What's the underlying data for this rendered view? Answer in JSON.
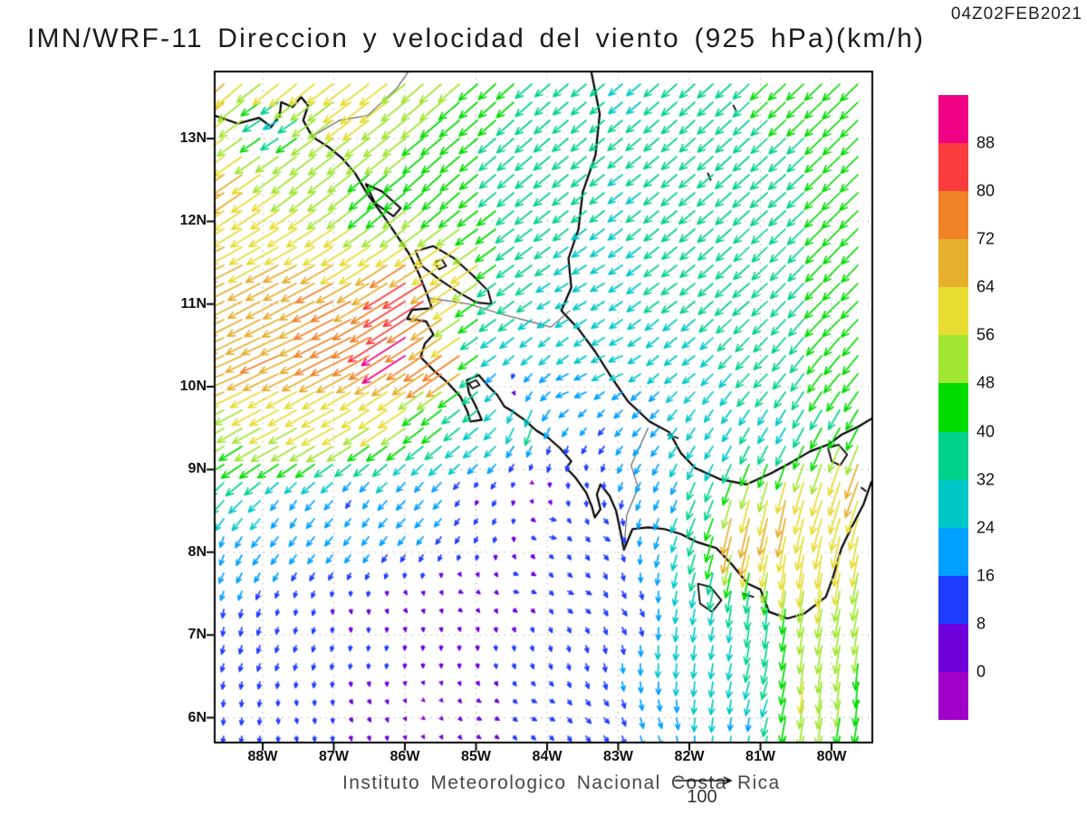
{
  "header": {
    "title": "IMN/WRF-11 Direccion y velocidad del viento (925 hPa)(km/h)",
    "timestamp": "04Z02FEB2021"
  },
  "footer": {
    "caption": "Instituto Meteorologico Nacional Costa Rica",
    "reference_arrow": {
      "label": "100",
      "value_kmh": 100
    }
  },
  "axes": {
    "y_ticks": [
      "13N",
      "12N",
      "11N",
      "10N",
      "9N",
      "8N",
      "7N",
      "6N"
    ],
    "x_ticks": [
      "88W",
      "87W",
      "86W",
      "85W",
      "84W",
      "83W",
      "82W",
      "81W",
      "80W"
    ]
  },
  "colorbar": {
    "labels_top_to_bottom": [
      "88",
      "80",
      "72",
      "64",
      "56",
      "48",
      "40",
      "32",
      "24",
      "16",
      "8",
      "0"
    ],
    "colors_top_to_bottom": [
      "#f00082",
      "#fa3c3c",
      "#f08228",
      "#e6af2d",
      "#e6dc32",
      "#a0e632",
      "#00dc00",
      "#00d28c",
      "#00c8c8",
      "#00a0ff",
      "#1e3cff",
      "#6e00dc",
      "#a000c8"
    ]
  },
  "chart_data": {
    "type": "vector_field",
    "title": "IMN/WRF-11 Direccion y velocidad del viento (925 hPa)(km/h)",
    "valid_time": "04Z02FEB2021",
    "units": "km/h",
    "pressure_level": "925 hPa",
    "lon_range": [
      -88.675,
      -79.427
    ],
    "lat_range": [
      5.7,
      13.81
    ],
    "grid": {
      "cols": 36,
      "rows": 37
    },
    "speed_levels": [
      0,
      8,
      16,
      24,
      32,
      40,
      48,
      56,
      64,
      72,
      80,
      88
    ],
    "reference_vector_kmh": 100,
    "wind_samples_format": "[lon_deg_east, lat_deg_north, u_kmh, v_kmh]",
    "wind_samples": [
      [
        -88.65,
        13.75,
        -52,
        -48
      ],
      [
        -87.6,
        13.75,
        -48,
        -40
      ],
      [
        -86.5,
        13.6,
        -50,
        -38
      ],
      [
        -85.5,
        13.7,
        -38,
        -33
      ],
      [
        -84.6,
        13.5,
        -30,
        -27
      ],
      [
        -83.8,
        13.6,
        -26,
        -22
      ],
      [
        -87.8,
        13.25,
        -26,
        -16
      ],
      [
        -88.4,
        12.5,
        -55,
        -38
      ],
      [
        -87.3,
        12.5,
        -44,
        -34
      ],
      [
        -86.4,
        12.3,
        -34,
        -30
      ],
      [
        -85.5,
        12.4,
        -33,
        -30
      ],
      [
        -84.6,
        12.6,
        -28,
        -24
      ],
      [
        -88.6,
        11.3,
        -63,
        -30
      ],
      [
        -87.6,
        11.4,
        -58,
        -30
      ],
      [
        -86.6,
        11.5,
        -52,
        -33
      ],
      [
        -85.9,
        11.15,
        -76,
        -47
      ],
      [
        -85.2,
        11.4,
        -52,
        -35
      ],
      [
        -84.5,
        11.3,
        -30,
        -22
      ],
      [
        -88.6,
        10.2,
        -66,
        -26
      ],
      [
        -87.7,
        10.4,
        -67,
        -30
      ],
      [
        -86.9,
        11.0,
        -72,
        -36
      ],
      [
        -86.8,
        10.5,
        -72,
        -35
      ],
      [
        -86.0,
        10.5,
        -78,
        -50
      ],
      [
        -85.35,
        10.3,
        -70,
        -48
      ],
      [
        -84.8,
        10.55,
        -26,
        -18
      ],
      [
        -84.0,
        10.4,
        -19,
        -16
      ],
      [
        -88.6,
        9.2,
        -42,
        -25
      ],
      [
        -87.8,
        9.5,
        -51,
        -27
      ],
      [
        -87.0,
        9.6,
        -55,
        -30
      ],
      [
        -86.2,
        9.7,
        -50,
        -33
      ],
      [
        -85.6,
        9.6,
        -35,
        -27
      ],
      [
        -85.0,
        9.35,
        -25,
        -20
      ],
      [
        -88.65,
        8.7,
        -22,
        -24
      ],
      [
        -88.6,
        8.1,
        -6,
        -18
      ],
      [
        -87.6,
        8.5,
        -10,
        -16
      ],
      [
        -86.7,
        8.6,
        -8,
        -13
      ],
      [
        -85.9,
        8.8,
        -14,
        -16
      ],
      [
        -85.0,
        8.7,
        -3,
        -7
      ],
      [
        -84.2,
        8.8,
        3,
        -2
      ],
      [
        -83.5,
        8.9,
        3,
        -9
      ],
      [
        -88.5,
        7.2,
        -2,
        -15
      ],
      [
        -87.6,
        7.3,
        -2,
        -10
      ],
      [
        -86.8,
        7.3,
        2,
        -7
      ],
      [
        -86.0,
        7.4,
        4,
        -5
      ],
      [
        -85.2,
        7.5,
        6,
        -3
      ],
      [
        -84.4,
        7.6,
        9,
        -2
      ],
      [
        -83.6,
        7.5,
        10,
        -5
      ],
      [
        -82.9,
        7.3,
        8,
        -11
      ],
      [
        -88.4,
        6.1,
        -1,
        -12
      ],
      [
        -87.5,
        6.0,
        2,
        -9
      ],
      [
        -86.6,
        6.1,
        4,
        -6
      ],
      [
        -85.7,
        6.1,
        3,
        -2
      ],
      [
        -84.9,
        6.0,
        7,
        -3
      ],
      [
        -84.1,
        6.1,
        9,
        -4
      ],
      [
        -83.3,
        6.0,
        9,
        -9
      ],
      [
        -82.5,
        5.9,
        6,
        -18
      ],
      [
        -84.0,
        8.3,
        12,
        -2
      ],
      [
        -83.2,
        8.2,
        10,
        -7
      ],
      [
        -82.9,
        13.6,
        -24,
        -20
      ],
      [
        -81.8,
        13.5,
        -27,
        -24
      ],
      [
        -80.6,
        13.6,
        -30,
        -28
      ],
      [
        -79.6,
        13.5,
        -31,
        -30
      ],
      [
        -82.9,
        12.4,
        -25,
        -19
      ],
      [
        -81.9,
        12.3,
        -28,
        -23
      ],
      [
        -80.8,
        12.4,
        -30,
        -26
      ],
      [
        -79.7,
        12.2,
        -32,
        -31
      ],
      [
        -83.2,
        11.3,
        -24,
        -14
      ],
      [
        -82.2,
        11.2,
        -27,
        -20
      ],
      [
        -81.2,
        11.1,
        -29,
        -25
      ],
      [
        -79.9,
        11.0,
        -31,
        -30
      ],
      [
        -83.0,
        10.3,
        -24,
        -10
      ],
      [
        -82.0,
        10.3,
        -22,
        -16
      ],
      [
        -81.0,
        10.2,
        -24,
        -24
      ],
      [
        -79.8,
        10.2,
        -28,
        -33
      ],
      [
        -82.6,
        9.6,
        -14,
        -14
      ],
      [
        -81.7,
        9.5,
        -14,
        -20
      ],
      [
        -80.8,
        9.6,
        -16,
        -26
      ],
      [
        -79.9,
        9.7,
        -20,
        -34
      ],
      [
        -83.6,
        10.0,
        -22,
        -8
      ],
      [
        -83.8,
        11.0,
        -22,
        -12
      ],
      [
        -84.3,
        9.6,
        -12,
        -33
      ],
      [
        -83.9,
        9.2,
        -4,
        -14
      ],
      [
        -84.5,
        10.0,
        3,
        -4
      ],
      [
        -83.3,
        9.55,
        -10,
        -12
      ],
      [
        -84.9,
        9.9,
        -27,
        -21
      ],
      [
        -82.4,
        8.7,
        -8,
        -16
      ],
      [
        -81.8,
        8.6,
        -14,
        -34
      ],
      [
        -81.25,
        8.3,
        -16,
        -72
      ],
      [
        -80.7,
        8.45,
        -14,
        -68
      ],
      [
        -80.1,
        8.7,
        -18,
        -60
      ],
      [
        -79.6,
        8.9,
        -22,
        -62
      ],
      [
        -79.5,
        8.0,
        -10,
        -56
      ],
      [
        -80.6,
        7.85,
        -8,
        -62
      ],
      [
        -80.2,
        7.8,
        -8,
        -60
      ],
      [
        -81.0,
        7.3,
        -4,
        -36
      ],
      [
        -81.6,
        7.0,
        -4,
        -24
      ],
      [
        -82.2,
        6.8,
        -2,
        -26
      ],
      [
        -80.0,
        6.8,
        -8,
        -50
      ],
      [
        -79.6,
        6.5,
        -4,
        -46
      ],
      [
        -80.3,
        6.5,
        -6,
        -58
      ],
      [
        -80.9,
        6.3,
        -10,
        -30
      ],
      [
        -81.3,
        6.0,
        -2,
        -22
      ],
      [
        -80.4,
        6.0,
        -8,
        -52
      ],
      [
        -79.6,
        5.75,
        -8,
        -46
      ]
    ],
    "coastlines": {
      "pacific_coast": [
        [
          -88.68,
          13.28
        ],
        [
          -88.35,
          13.18
        ],
        [
          -88.05,
          13.25
        ],
        [
          -87.88,
          13.14
        ],
        [
          -87.76,
          13.28
        ],
        [
          -87.74,
          13.44
        ],
        [
          -87.58,
          13.38
        ],
        [
          -87.46,
          13.5
        ],
        [
          -87.36,
          13.4
        ],
        [
          -87.43,
          13.22
        ],
        [
          -87.3,
          13.02
        ],
        [
          -87.08,
          12.9
        ],
        [
          -86.88,
          12.76
        ],
        [
          -86.7,
          12.58
        ],
        [
          -86.52,
          12.32
        ],
        [
          -86.33,
          12.1
        ],
        [
          -86.14,
          11.86
        ],
        [
          -85.95,
          11.62
        ],
        [
          -85.8,
          11.36
        ],
        [
          -85.68,
          11.1
        ],
        [
          -85.62,
          10.95
        ],
        [
          -85.9,
          10.93
        ],
        [
          -85.97,
          10.82
        ],
        [
          -85.7,
          10.79
        ],
        [
          -85.6,
          10.63
        ],
        [
          -85.72,
          10.52
        ],
        [
          -85.78,
          10.36
        ],
        [
          -85.6,
          10.2
        ],
        [
          -85.4,
          10.05
        ],
        [
          -85.22,
          9.88
        ],
        [
          -85.12,
          9.7
        ],
        [
          -85.08,
          9.58
        ],
        [
          -84.92,
          9.6
        ],
        [
          -85.0,
          9.76
        ],
        [
          -85.1,
          9.93
        ],
        [
          -85.13,
          10.08
        ],
        [
          -84.96,
          10.14
        ],
        [
          -84.82,
          10.0
        ],
        [
          -84.7,
          9.9
        ],
        [
          -84.6,
          9.76
        ],
        [
          -84.48,
          9.7
        ],
        [
          -84.32,
          9.6
        ],
        [
          -84.15,
          9.47
        ],
        [
          -83.98,
          9.38
        ],
        [
          -83.82,
          9.26
        ],
        [
          -83.66,
          9.1
        ],
        [
          -83.73,
          9.02
        ],
        [
          -83.6,
          8.9
        ],
        [
          -83.45,
          8.72
        ],
        [
          -83.37,
          8.55
        ],
        [
          -83.33,
          8.42
        ],
        [
          -83.25,
          8.52
        ],
        [
          -83.3,
          8.7
        ],
        [
          -83.25,
          8.82
        ],
        [
          -83.12,
          8.68
        ],
        [
          -83.03,
          8.5
        ],
        [
          -82.98,
          8.3
        ],
        [
          -82.92,
          8.03
        ],
        [
          -82.8,
          8.28
        ],
        [
          -82.58,
          8.3
        ],
        [
          -82.35,
          8.28
        ],
        [
          -82.12,
          8.22
        ],
        [
          -81.88,
          8.12
        ],
        [
          -81.62,
          8.05
        ],
        [
          -81.4,
          7.85
        ],
        [
          -81.18,
          7.62
        ],
        [
          -81.0,
          7.55
        ],
        [
          -80.88,
          7.28
        ],
        [
          -80.62,
          7.2
        ],
        [
          -80.38,
          7.26
        ],
        [
          -80.08,
          7.46
        ],
        [
          -79.98,
          7.7
        ],
        [
          -79.86,
          8.05
        ],
        [
          -79.72,
          8.3
        ],
        [
          -79.55,
          8.58
        ],
        [
          -79.44,
          8.85
        ]
      ],
      "caribbean_coast": [
        [
          -83.38,
          13.81
        ],
        [
          -83.26,
          13.3
        ],
        [
          -83.32,
          12.8
        ],
        [
          -83.5,
          12.35
        ],
        [
          -83.56,
          11.9
        ],
        [
          -83.7,
          11.55
        ],
        [
          -83.66,
          11.2
        ],
        [
          -83.8,
          10.92
        ],
        [
          -83.56,
          10.7
        ],
        [
          -83.32,
          10.42
        ],
        [
          -83.1,
          10.12
        ],
        [
          -82.86,
          9.82
        ],
        [
          -82.56,
          9.58
        ],
        [
          -82.28,
          9.45
        ],
        [
          -82.12,
          9.2
        ],
        [
          -81.92,
          9.02
        ],
        [
          -81.56,
          8.88
        ],
        [
          -81.2,
          8.82
        ],
        [
          -80.86,
          8.95
        ],
        [
          -80.58,
          9.08
        ],
        [
          -80.3,
          9.22
        ],
        [
          -80.05,
          9.3
        ],
        [
          -79.86,
          9.42
        ],
        [
          -79.62,
          9.52
        ],
        [
          -79.43,
          9.62
        ]
      ],
      "lake_nicaragua": [
        [
          -85.85,
          11.64
        ],
        [
          -85.6,
          11.7
        ],
        [
          -85.32,
          11.56
        ],
        [
          -85.05,
          11.35
        ],
        [
          -84.83,
          11.16
        ],
        [
          -84.78,
          11.0
        ],
        [
          -85.0,
          11.02
        ],
        [
          -85.26,
          11.15
        ],
        [
          -85.52,
          11.3
        ],
        [
          -85.76,
          11.46
        ],
        [
          -85.85,
          11.64
        ]
      ],
      "lake_managua": [
        [
          -86.55,
          12.45
        ],
        [
          -86.32,
          12.36
        ],
        [
          -86.06,
          12.16
        ],
        [
          -86.16,
          12.06
        ],
        [
          -86.42,
          12.22
        ],
        [
          -86.55,
          12.45
        ]
      ],
      "borders": [
        [
          [
            -85.64,
            11.07
          ],
          [
            -85.1,
            11.0
          ],
          [
            -84.65,
            10.88
          ],
          [
            -84.2,
            10.78
          ],
          [
            -83.95,
            10.72
          ],
          [
            -83.68,
            10.92
          ]
        ],
        [
          [
            -82.92,
            8.05
          ],
          [
            -82.88,
            8.45
          ],
          [
            -82.72,
            8.78
          ],
          [
            -82.82,
            9.05
          ],
          [
            -82.58,
            9.5
          ]
        ],
        [
          [
            -87.32,
            13.02
          ],
          [
            -86.92,
            13.22
          ],
          [
            -86.52,
            13.28
          ],
          [
            -86.12,
            13.6
          ],
          [
            -85.95,
            13.81
          ]
        ]
      ],
      "islands": [
        [
          [
            -81.88,
            7.62
          ],
          [
            -81.7,
            7.58
          ],
          [
            -81.55,
            7.42
          ],
          [
            -81.68,
            7.28
          ],
          [
            -81.85,
            7.38
          ],
          [
            -81.88,
            7.62
          ]
        ],
        [
          [
            -80.05,
            9.26
          ],
          [
            -79.9,
            9.3
          ],
          [
            -79.78,
            9.18
          ],
          [
            -79.88,
            9.05
          ],
          [
            -80.0,
            9.1
          ],
          [
            -80.05,
            9.26
          ]
        ],
        [
          [
            -85.1,
            10.04
          ],
          [
            -85.0,
            10.08
          ],
          [
            -84.95,
            10.02
          ],
          [
            -85.05,
            9.98
          ],
          [
            -85.1,
            10.04
          ]
        ],
        [
          [
            -85.58,
            11.5
          ],
          [
            -85.48,
            11.54
          ],
          [
            -85.42,
            11.46
          ],
          [
            -85.52,
            11.42
          ],
          [
            -85.58,
            11.5
          ]
        ],
        [
          [
            -81.74,
            12.58
          ],
          [
            -81.7,
            12.5
          ]
        ],
        [
          [
            -81.38,
            13.4
          ],
          [
            -81.34,
            13.33
          ]
        ],
        [
          [
            -82.3,
            9.42
          ],
          [
            -82.16,
            9.38
          ]
        ],
        [
          [
            -81.25,
            7.5
          ],
          [
            -81.1,
            7.46
          ]
        ],
        [
          [
            -79.58,
            8.78
          ],
          [
            -79.52,
            8.74
          ]
        ]
      ]
    }
  }
}
